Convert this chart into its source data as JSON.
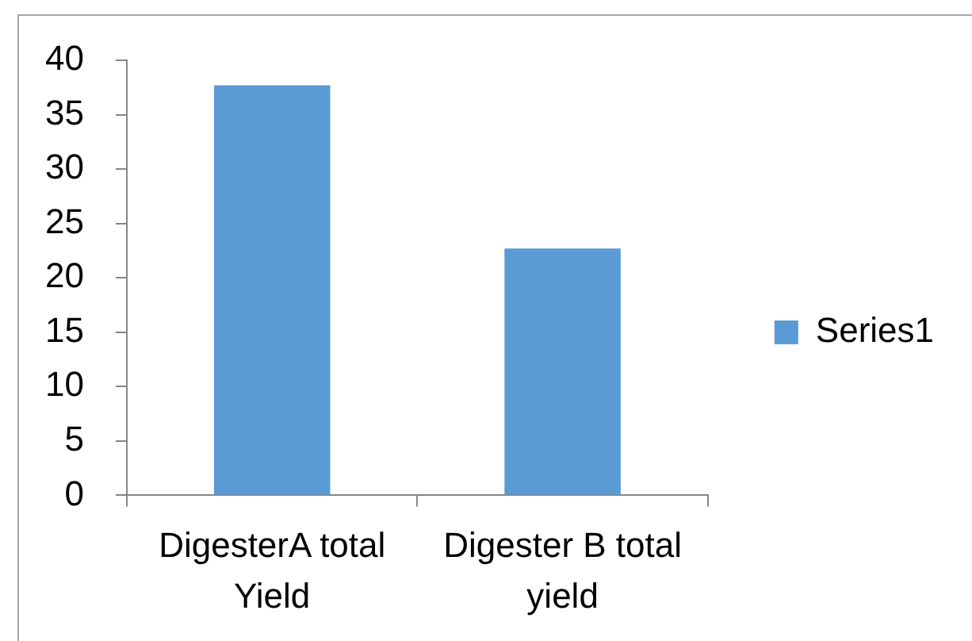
{
  "chart_data": {
    "type": "bar",
    "categories": [
      "DigesterA total Yield",
      "Digester B total yield"
    ],
    "series": [
      {
        "name": "Series1",
        "color": "#5b9bd5",
        "values": [
          37.7,
          22.7
        ]
      }
    ],
    "ylim": [
      0,
      40
    ],
    "yticks": [
      0,
      5,
      10,
      15,
      20,
      25,
      30,
      35,
      40
    ],
    "legend": "right"
  }
}
